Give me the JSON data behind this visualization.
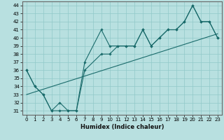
{
  "xlabel": "Humidex (Indice chaleur)",
  "bg_color": "#b8e0e0",
  "line_color": "#1a6b6b",
  "grid_color": "#90c8c8",
  "xlim": [
    -0.5,
    23.5
  ],
  "ylim": [
    30.5,
    44.5
  ],
  "yticks": [
    31,
    32,
    33,
    34,
    35,
    36,
    37,
    38,
    39,
    40,
    41,
    42,
    43,
    44
  ],
  "xticks": [
    0,
    1,
    2,
    3,
    4,
    5,
    6,
    7,
    8,
    9,
    10,
    11,
    12,
    13,
    14,
    15,
    16,
    17,
    18,
    19,
    20,
    21,
    22,
    23
  ],
  "line1_x": [
    0,
    1,
    2,
    3,
    4,
    5,
    6,
    7,
    9,
    10,
    11,
    12,
    13,
    14,
    15,
    16,
    17,
    18,
    19,
    20,
    21,
    22,
    23
  ],
  "line1_y": [
    36,
    34,
    33,
    31,
    32,
    31,
    31,
    37,
    41,
    39,
    39,
    39,
    39,
    41,
    39,
    40,
    41,
    41,
    42,
    44,
    42,
    42,
    40
  ],
  "line2_x": [
    0,
    1,
    2,
    3,
    4,
    5,
    6,
    7,
    9,
    10,
    11,
    12,
    13,
    14,
    15,
    16,
    17,
    18,
    19,
    20,
    21,
    22,
    23
  ],
  "line2_y": [
    36,
    34,
    33,
    31,
    31,
    31,
    31,
    36,
    38,
    38,
    39,
    39,
    39,
    41,
    39,
    40,
    41,
    41,
    42,
    44,
    42,
    42,
    40
  ],
  "line3_x": [
    0,
    23
  ],
  "line3_y": [
    33,
    40.5
  ],
  "xlabel_fontsize": 6,
  "tick_fontsize": 5
}
